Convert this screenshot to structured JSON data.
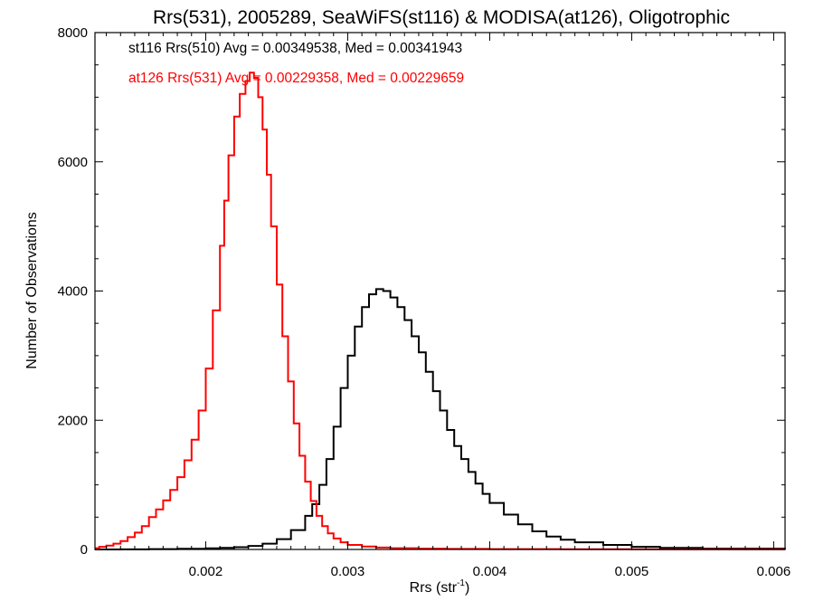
{
  "chart_data": {
    "type": "line",
    "title": "Rrs(531), 2005289, SeaWiFS(st116) & MODISA(at126), Oligotrophic",
    "xlabel": "Rrs (str",
    "xlabel_sup": "-1",
    "xlabel_end": ")",
    "ylabel": "Number of Observations",
    "xlim": [
      0.00122,
      0.00608
    ],
    "ylim": [
      0,
      8000
    ],
    "x_ticks": [
      0.002,
      0.003,
      0.004,
      0.005,
      0.006
    ],
    "x_tick_labels": [
      "0.002",
      "0.003",
      "0.004",
      "0.005",
      "0.006"
    ],
    "y_ticks": [
      0,
      2000,
      4000,
      6000,
      8000
    ],
    "y_tick_labels": [
      "0",
      "2000",
      "4000",
      "6000",
      "8000"
    ],
    "grid": false,
    "annotations": [
      {
        "text": "st116 Rrs(510) Avg = 0.00349538, Med = 0.00341943",
        "color": "#000000"
      },
      {
        "text": "at126 Rrs(531) Avg = 0.00229358, Med = 0.00229659",
        "color": "#ff0000"
      }
    ],
    "series": [
      {
        "color": "#ff0000",
        "step": true,
        "x": [
          0.00122,
          0.00125,
          0.0013,
          0.00135,
          0.0014,
          0.00145,
          0.0015,
          0.00155,
          0.0016,
          0.00165,
          0.0017,
          0.00175,
          0.0018,
          0.00185,
          0.0019,
          0.00195,
          0.002,
          0.00205,
          0.0021,
          0.00213,
          0.00216,
          0.0022,
          0.00224,
          0.00228,
          0.00231,
          0.00234,
          0.00237,
          0.0024,
          0.00243,
          0.00246,
          0.0025,
          0.00254,
          0.00258,
          0.00262,
          0.00266,
          0.0027,
          0.00274,
          0.00278,
          0.00282,
          0.00286,
          0.0029,
          0.00295,
          0.003,
          0.0031,
          0.0032,
          0.0033,
          0.0035,
          0.0037,
          0.004,
          0.0045,
          0.005,
          0.0055,
          0.00608
        ],
        "y": [
          20,
          40,
          60,
          90,
          130,
          190,
          260,
          360,
          500,
          620,
          760,
          920,
          1120,
          1380,
          1700,
          2150,
          2800,
          3700,
          4700,
          5400,
          6100,
          6700,
          7050,
          7250,
          7380,
          7300,
          7000,
          6500,
          5800,
          5000,
          4100,
          3300,
          2600,
          1950,
          1450,
          1050,
          750,
          520,
          360,
          250,
          170,
          110,
          70,
          45,
          30,
          20,
          12,
          8,
          5,
          3,
          2,
          1,
          0
        ]
      },
      {
        "color": "#000000",
        "step": true,
        "x": [
          0.00122,
          0.0014,
          0.0016,
          0.0018,
          0.002,
          0.0021,
          0.0022,
          0.0023,
          0.0024,
          0.0025,
          0.0026,
          0.0027,
          0.00275,
          0.0028,
          0.00285,
          0.0029,
          0.00295,
          0.003,
          0.00305,
          0.0031,
          0.00315,
          0.0032,
          0.00325,
          0.0033,
          0.00335,
          0.0034,
          0.00345,
          0.0035,
          0.00355,
          0.0036,
          0.00365,
          0.0037,
          0.00375,
          0.0038,
          0.00385,
          0.0039,
          0.00395,
          0.004,
          0.0041,
          0.0042,
          0.0043,
          0.0044,
          0.0045,
          0.0046,
          0.0048,
          0.005,
          0.0052,
          0.0055,
          0.00608
        ],
        "y": [
          0,
          2,
          5,
          10,
          18,
          25,
          35,
          55,
          90,
          160,
          300,
          520,
          700,
          1000,
          1400,
          1900,
          2500,
          3000,
          3450,
          3750,
          3950,
          4030,
          4000,
          3900,
          3750,
          3550,
          3300,
          3050,
          2750,
          2450,
          2150,
          1850,
          1600,
          1400,
          1200,
          1020,
          860,
          720,
          540,
          390,
          280,
          200,
          150,
          110,
          70,
          40,
          25,
          12,
          5
        ]
      }
    ]
  }
}
